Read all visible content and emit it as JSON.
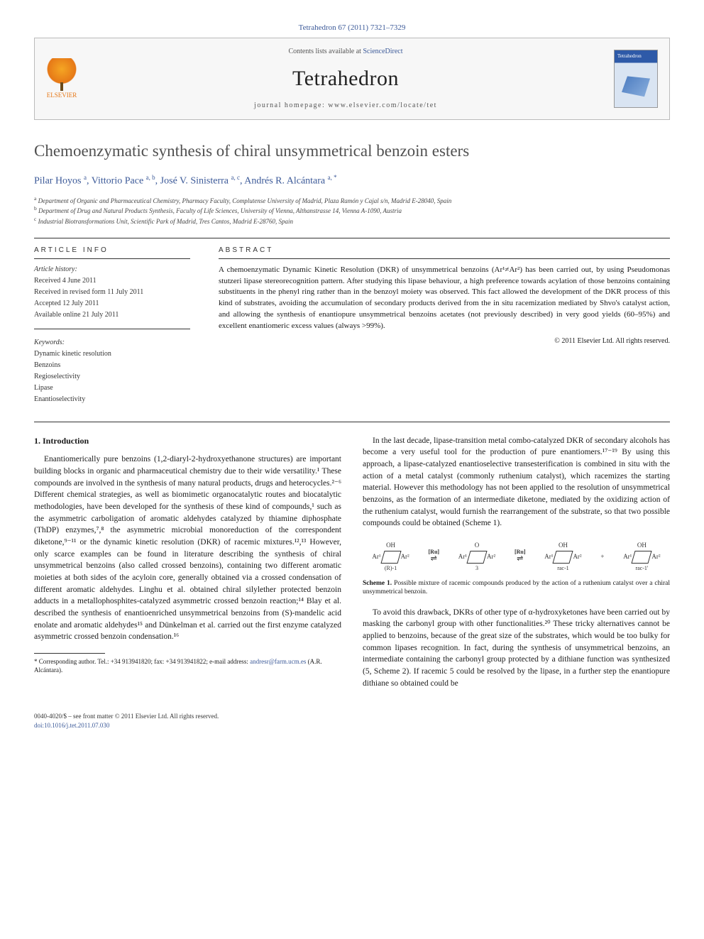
{
  "citation": "Tetrahedron 67 (2011) 7321–7329",
  "header": {
    "publisher": "ELSEVIER",
    "contents_prefix": "Contents lists available at ",
    "contents_link": "ScienceDirect",
    "journal": "Tetrahedron",
    "homepage_prefix": "journal homepage: ",
    "homepage": "www.elsevier.com/locate/tet",
    "cover_label": "Tetrahedron"
  },
  "title": "Chemoenzymatic synthesis of chiral unsymmetrical benzoin esters",
  "authors_html": "Pilar Hoyos <sup>a</sup>, Vittorio Pace <sup>a, b</sup>, José V. Sinisterra <sup>a, c</sup>, Andrés R. Alcántara <sup>a, *</sup>",
  "affiliations": [
    "a Department of Organic and Pharmaceutical Chemistry, Pharmacy Faculty, Complutense University of Madrid, Plaza Ramón y Cajal s/n, Madrid E-28040, Spain",
    "b Department of Drug and Natural Products Synthesis, Faculty of Life Sciences, University of Vienna, Althanstrasse 14, Vienna A-1090, Austria",
    "c Industrial Biotransformations Unit, Scientific Park of Madrid, Tres Cantos, Madrid E-28760, Spain"
  ],
  "article_info": {
    "heading": "ARTICLE INFO",
    "history_label": "Article history:",
    "history": [
      "Received 4 June 2011",
      "Received in revised form 11 July 2011",
      "Accepted 12 July 2011",
      "Available online 21 July 2011"
    ],
    "keywords_label": "Keywords:",
    "keywords": [
      "Dynamic kinetic resolution",
      "Benzoins",
      "Regioselectivity",
      "Lipase",
      "Enantioselectivity"
    ]
  },
  "abstract": {
    "heading": "ABSTRACT",
    "text": "A chemoenzymatic Dynamic Kinetic Resolution (DKR) of unsymmetrical benzoins (Ar¹≠Ar²) has been carried out, by using Pseudomonas stutzeri lipase stereorecognition pattern. After studying this lipase behaviour, a high preference towards acylation of those benzoins containing substituents in the phenyl ring rather than in the benzoyl moiety was observed. This fact allowed the development of the DKR process of this kind of substrates, avoiding the accumulation of secondary products derived from the in situ racemization mediated by Shvo's catalyst action, and allowing the synthesis of enantiopure unsymmetrical benzoins acetates (not previously described) in very good yields (60–95%) and excellent enantiomeric excess values (always >99%).",
    "copyright": "© 2011 Elsevier Ltd. All rights reserved."
  },
  "intro": {
    "heading": "1. Introduction",
    "p1": "Enantiomerically pure benzoins (1,2-diaryl-2-hydroxyethanone structures) are important building blocks in organic and pharmaceutical chemistry due to their wide versatility.¹ These compounds are involved in the synthesis of many natural products, drugs and heterocycles.²⁻⁶ Different chemical strategies, as well as biomimetic organocatalytic routes and biocatalytic methodologies, have been developed for the synthesis of these kind of compounds,¹ such as the asymmetric carboligation of aromatic aldehydes catalyzed by thiamine diphosphate (ThDP) enzymes,⁷,⁸ the asymmetric microbial monoreduction of the correspondent diketone,⁹⁻¹¹ or the dynamic kinetic resolution (DKR) of racemic mixtures.¹²,¹³ However, only scarce examples can be found in literature describing the synthesis of chiral unsymmetrical benzoins (also called crossed benzoins), containing two different aromatic moieties at both sides of the acyloin core, generally obtained via a crossed condensation of different aromatic aldehydes. Linghu et al. obtained chiral silylether protected benzoin adducts in a metallophosphites-catalyzed asymmetric crossed benzoin reaction;¹⁴ Blay et al. described the synthesis of enantioenriched unsymmetrical benzoins from (S)-mandelic acid enolate and aromatic aldehydes¹⁵ and Dünkelman et al. carried out the first enzyme catalyzed asymmetric crossed benzoin condensation.¹⁶",
    "p2": "In the last decade, lipase-transition metal combo-catalyzed DKR of secondary alcohols has become a very useful tool for the production of pure enantiomers.¹⁷⁻¹⁹ By using this approach, a lipase-catalyzed enantioselective transesterification is combined in situ with the action of a metal catalyst (commonly ruthenium catalyst), which racemizes the starting material. However this methodology has not been applied to the resolution of unsymmetrical benzoins, as the formation of an intermediate diketone, mediated by the oxidizing action of the ruthenium catalyst, would furnish the rearrangement of the substrate, so that two possible compounds could be obtained (Scheme 1).",
    "p3": "To avoid this drawback, DKRs of other type of α-hydroxyketones have been carried out by masking the carbonyl group with other functionalities.²⁰ These tricky alternatives cannot be applied to benzoins, because of the great size of the substrates, which would be too bulky for common lipases recognition. In fact, during the synthesis of unsymmetrical benzoins, an intermediate containing the carbonyl group protected by a dithiane function was synthesized (5, Scheme 2). If racemic 5 could be resolved by the lipase, in a further step the enantiopure dithiane so obtained could be"
  },
  "scheme1": {
    "labels": [
      "(R)-1",
      "3",
      "rac-1",
      "rac-1'"
    ],
    "ru": "[Ru]",
    "ar": [
      "Ar¹",
      "Ar²"
    ],
    "oh": "OH",
    "o": "O",
    "caption": "Scheme 1. Possible mixture of racemic compounds produced by the action of a ruthenium catalyst over a chiral unsymmetrical benzoin."
  },
  "footnote": {
    "text": "* Corresponding author. Tel.: +34 913941820; fax: +34 913941822; e-mail address: ",
    "email": "andresr@farm.ucm.es",
    "suffix": " (A.R. Alcántara)."
  },
  "footer": {
    "left1": "0040-4020/$ – see front matter © 2011 Elsevier Ltd. All rights reserved.",
    "doi": "doi:10.1016/j.tet.2011.07.030"
  },
  "colors": {
    "link": "#3b5998",
    "publisher_orange": "#e67817",
    "rule": "#333333",
    "cover_blue": "#2e5aa8"
  }
}
